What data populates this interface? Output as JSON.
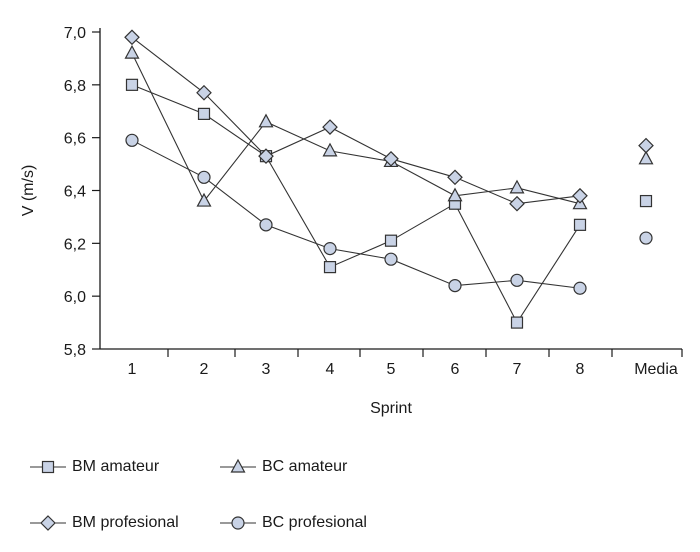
{
  "chart_data": {
    "type": "line",
    "ylabel": "V (m/s)",
    "xlabel": "Sprint",
    "categories": [
      "1",
      "2",
      "3",
      "4",
      "5",
      "6",
      "7",
      "8"
    ],
    "mean_label": "Media",
    "ylim": [
      5.8,
      7.0
    ],
    "yticks": [
      "5,8",
      "6,0",
      "6,2",
      "6,4",
      "6,6",
      "6,8",
      "7,0"
    ],
    "grid": false,
    "legend_position": "bottom",
    "series": [
      {
        "name": "BM amateur",
        "marker": "square",
        "values": [
          6.8,
          6.69,
          6.53,
          6.11,
          6.21,
          6.35,
          5.9,
          6.27
        ],
        "mean": 6.36
      },
      {
        "name": "BC amateur",
        "marker": "triangle",
        "values": [
          6.92,
          6.36,
          6.66,
          6.55,
          6.51,
          6.38,
          6.41,
          6.35
        ],
        "mean": 6.52
      },
      {
        "name": "BM profesional",
        "marker": "diamond",
        "values": [
          6.98,
          6.77,
          6.53,
          6.64,
          6.52,
          6.45,
          6.35,
          6.38
        ],
        "mean": 6.57
      },
      {
        "name": "BC profesional",
        "marker": "circle",
        "values": [
          6.59,
          6.45,
          6.27,
          6.18,
          6.14,
          6.04,
          6.06,
          6.03
        ],
        "mean": 6.22
      }
    ],
    "colors": {
      "line": "#333333",
      "marker_fill": "#c9d3e6",
      "marker_stroke": "#333333"
    }
  }
}
